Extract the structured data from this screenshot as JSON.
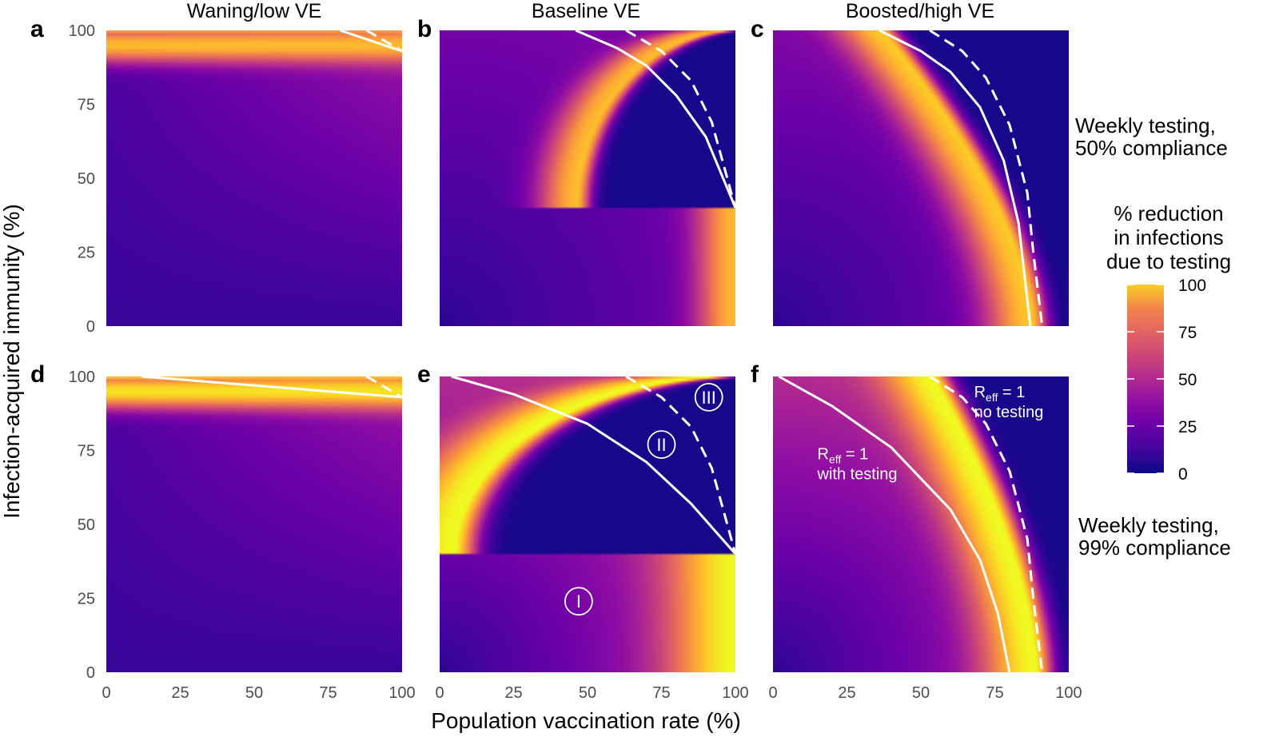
{
  "chart_data": {
    "type": "heatmap",
    "xlabel": "Population vaccination rate (%)",
    "ylabel": "Infection-acquired immunity (%)",
    "x_ticks": [
      0,
      25,
      50,
      75,
      100
    ],
    "y_ticks": [
      0,
      25,
      50,
      75,
      100
    ],
    "xlim": [
      0,
      100
    ],
    "ylim": [
      0,
      100
    ],
    "grid": false,
    "colormap": "plasma",
    "legend": {
      "title": [
        "% reduction",
        "in infections",
        "due to testing"
      ],
      "ticks": [
        0,
        25,
        50,
        75,
        100
      ],
      "range": [
        0,
        100
      ],
      "placement": "right"
    },
    "columns": [
      "Waning/low VE",
      "Baseline VE",
      "Boosted/high VE"
    ],
    "rows": [
      [
        "Weekly testing,",
        "50% compliance"
      ],
      [
        "Weekly testing,",
        "99% compliance"
      ]
    ],
    "panels": [
      {
        "label": "a",
        "column": 0,
        "row": 0,
        "heat": {
          "peak": 85,
          "fade": 12,
          "boundary": "waning"
        },
        "r_eff_with_testing": [
          [
            79,
            100
          ],
          [
            100,
            93
          ]
        ],
        "r_eff_no_testing": [
          [
            88,
            100
          ],
          [
            100,
            93
          ]
        ]
      },
      {
        "label": "b",
        "column": 1,
        "row": 0,
        "heat": {
          "peak": 85,
          "fade": 18,
          "boundary": "baseline"
        },
        "r_eff_with_testing": [
          [
            46,
            100
          ],
          [
            60,
            94
          ],
          [
            70,
            88
          ],
          [
            80,
            78
          ],
          [
            90,
            64
          ],
          [
            100,
            40
          ]
        ],
        "r_eff_no_testing": [
          [
            63,
            100
          ],
          [
            75,
            93
          ],
          [
            85,
            83
          ],
          [
            92,
            69
          ],
          [
            100,
            40
          ]
        ]
      },
      {
        "label": "c",
        "column": 2,
        "row": 0,
        "heat": {
          "peak": 88,
          "fade": 22,
          "boundary": "boosted_testing"
        },
        "r_eff_with_testing": [
          [
            36,
            100
          ],
          [
            50,
            93
          ],
          [
            60,
            86
          ],
          [
            70,
            74
          ],
          [
            78,
            56
          ],
          [
            83,
            35
          ],
          [
            87,
            0
          ]
        ],
        "r_eff_no_testing": [
          [
            53,
            100
          ],
          [
            64,
            93
          ],
          [
            72,
            84
          ],
          [
            80,
            68
          ],
          [
            86,
            45
          ],
          [
            88,
            25
          ],
          [
            91,
            0
          ]
        ]
      },
      {
        "label": "d",
        "column": 0,
        "row": 1,
        "heat": {
          "peak": 95,
          "fade": 25,
          "boundary": "waning"
        },
        "r_eff_with_testing": [
          [
            12,
            100
          ],
          [
            100,
            93
          ]
        ],
        "r_eff_no_testing": [
          [
            88,
            100
          ],
          [
            100,
            93
          ]
        ]
      },
      {
        "label": "e",
        "column": 1,
        "row": 1,
        "heat": {
          "peak": 100,
          "fade": 38,
          "boundary": "baseline_testing"
        },
        "r_eff_with_testing": [
          [
            4,
            100
          ],
          [
            25,
            94
          ],
          [
            50,
            84
          ],
          [
            70,
            71
          ],
          [
            85,
            57
          ],
          [
            100,
            40
          ]
        ],
        "r_eff_no_testing": [
          [
            63,
            100
          ],
          [
            75,
            93
          ],
          [
            85,
            83
          ],
          [
            92,
            69
          ],
          [
            100,
            40
          ]
        ],
        "regions": [
          {
            "text": "I",
            "x": 47,
            "y": 24
          },
          {
            "text": "II",
            "x": 75,
            "y": 77
          },
          {
            "text": "III",
            "x": 91,
            "y": 93
          }
        ]
      },
      {
        "label": "f",
        "column": 2,
        "row": 1,
        "heat": {
          "peak": 100,
          "fade": 38,
          "boundary": "boosted"
        },
        "r_eff_with_testing": [
          [
            2,
            100
          ],
          [
            20,
            90
          ],
          [
            40,
            76
          ],
          [
            60,
            55
          ],
          [
            70,
            38
          ],
          [
            76,
            20
          ],
          [
            80,
            0
          ]
        ],
        "r_eff_no_testing": [
          [
            53,
            100
          ],
          [
            64,
            93
          ],
          [
            72,
            84
          ],
          [
            80,
            68
          ],
          [
            86,
            45
          ],
          [
            88,
            25
          ],
          [
            91,
            0
          ]
        ],
        "annotations": [
          {
            "lines": [
              "R",
              "eff",
              " = 1",
              "with testing"
            ],
            "x": 15,
            "y": 72
          },
          {
            "lines": [
              "R",
              "eff",
              " = 1",
              "no testing"
            ],
            "x": 68,
            "y": 93
          }
        ]
      }
    ]
  }
}
